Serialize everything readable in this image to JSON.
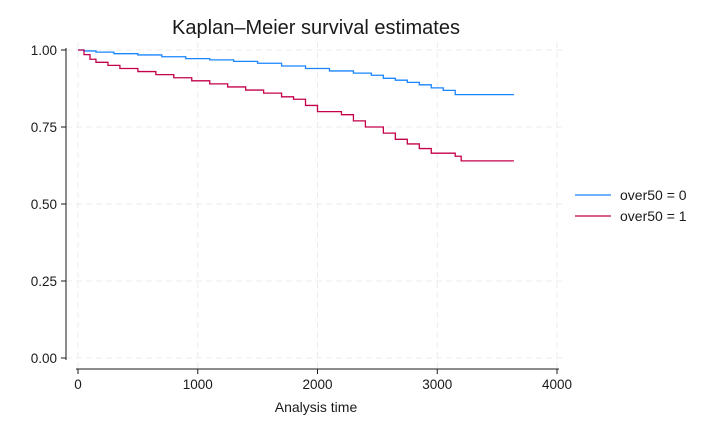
{
  "chart_data": {
    "type": "line",
    "title": "Kaplan–Meier survival estimates",
    "xlabel": "Analysis time",
    "ylabel": "",
    "xlim": [
      0,
      4000
    ],
    "ylim": [
      0,
      1
    ],
    "x_ticks": [
      "0",
      "1000",
      "2000",
      "3000",
      "4000"
    ],
    "y_ticks": [
      "0.00",
      "0.25",
      "0.50",
      "0.75",
      "1.00"
    ],
    "grid": true,
    "legend_position": "right",
    "step": true,
    "series": [
      {
        "name": "over50 = 0",
        "color": "#1a85ff",
        "points": [
          [
            0,
            1.0
          ],
          [
            50,
            0.997
          ],
          [
            150,
            0.993
          ],
          [
            300,
            0.988
          ],
          [
            500,
            0.984
          ],
          [
            700,
            0.978
          ],
          [
            900,
            0.972
          ],
          [
            1100,
            0.968
          ],
          [
            1300,
            0.963
          ],
          [
            1500,
            0.957
          ],
          [
            1700,
            0.948
          ],
          [
            1900,
            0.94
          ],
          [
            2100,
            0.932
          ],
          [
            2300,
            0.925
          ],
          [
            2450,
            0.918
          ],
          [
            2550,
            0.908
          ],
          [
            2650,
            0.902
          ],
          [
            2750,
            0.895
          ],
          [
            2850,
            0.887
          ],
          [
            2950,
            0.877
          ],
          [
            3050,
            0.869
          ],
          [
            3150,
            0.855
          ],
          [
            3640,
            0.855
          ]
        ]
      },
      {
        "name": "over50 = 1",
        "color": "#c4004a",
        "points": [
          [
            0,
            1.0
          ],
          [
            50,
            0.985
          ],
          [
            100,
            0.97
          ],
          [
            150,
            0.96
          ],
          [
            250,
            0.95
          ],
          [
            350,
            0.94
          ],
          [
            500,
            0.93
          ],
          [
            650,
            0.92
          ],
          [
            800,
            0.91
          ],
          [
            950,
            0.9
          ],
          [
            1100,
            0.89
          ],
          [
            1250,
            0.88
          ],
          [
            1400,
            0.87
          ],
          [
            1550,
            0.86
          ],
          [
            1700,
            0.848
          ],
          [
            1800,
            0.84
          ],
          [
            1900,
            0.82
          ],
          [
            2000,
            0.8
          ],
          [
            2200,
            0.79
          ],
          [
            2300,
            0.77
          ],
          [
            2400,
            0.75
          ],
          [
            2550,
            0.73
          ],
          [
            2650,
            0.71
          ],
          [
            2750,
            0.695
          ],
          [
            2850,
            0.68
          ],
          [
            2950,
            0.665
          ],
          [
            3150,
            0.655
          ],
          [
            3200,
            0.64
          ],
          [
            3640,
            0.64
          ]
        ]
      }
    ]
  }
}
